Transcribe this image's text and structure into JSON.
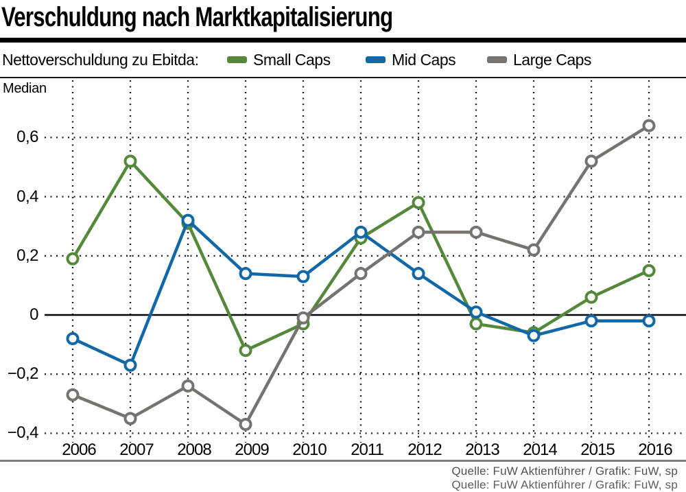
{
  "header": {
    "title": "Verschuldung nach Marktkapitalisierung"
  },
  "legend": {
    "caption": "Nettoverschuldung zu Ebitda:"
  },
  "chart_data": {
    "type": "line",
    "title": "Verschuldung nach Marktkapitalisierung",
    "caption": "Nettoverschuldung zu Ebitda:",
    "ylabel": "Median",
    "xlabel": "",
    "categories": [
      "2006",
      "2007",
      "2008",
      "2009",
      "2010",
      "2011",
      "2012",
      "2013",
      "2014",
      "2015",
      "2016"
    ],
    "series": [
      {
        "name": "Small Caps",
        "color": "#55883a",
        "values": [
          0.19,
          0.52,
          0.31,
          -0.12,
          -0.03,
          0.26,
          0.38,
          -0.03,
          -0.06,
          0.06,
          0.15
        ]
      },
      {
        "name": "Mid Caps",
        "color": "#1168a8",
        "values": [
          -0.08,
          -0.17,
          0.32,
          0.14,
          0.13,
          0.28,
          0.14,
          0.01,
          -0.07,
          -0.02,
          -0.02
        ]
      },
      {
        "name": "Large Caps",
        "color": "#757270",
        "values": [
          -0.27,
          -0.35,
          -0.24,
          -0.37,
          -0.01,
          0.14,
          0.28,
          0.28,
          0.22,
          0.52,
          0.64
        ]
      }
    ],
    "yticks": [
      {
        "value": 0.6,
        "label": "0,6"
      },
      {
        "value": 0.4,
        "label": "0,4"
      },
      {
        "value": 0.2,
        "label": "0,2"
      },
      {
        "value": 0,
        "label": "0"
      },
      {
        "value": -0.2,
        "label": "−0,2"
      },
      {
        "value": -0.4,
        "label": "−0,4"
      }
    ],
    "ylim": [
      -0.45,
      0.8
    ],
    "grid": "dotted",
    "zero_axis": true,
    "legend_position": "top",
    "marker": "open-circle"
  },
  "footer": {
    "source": "Quelle: FuW Aktienführer / Grafik: FuW, sp",
    "source_line2_clipped": "Quelle: FuW Aktienführer / Grafik: FuW, sp"
  }
}
